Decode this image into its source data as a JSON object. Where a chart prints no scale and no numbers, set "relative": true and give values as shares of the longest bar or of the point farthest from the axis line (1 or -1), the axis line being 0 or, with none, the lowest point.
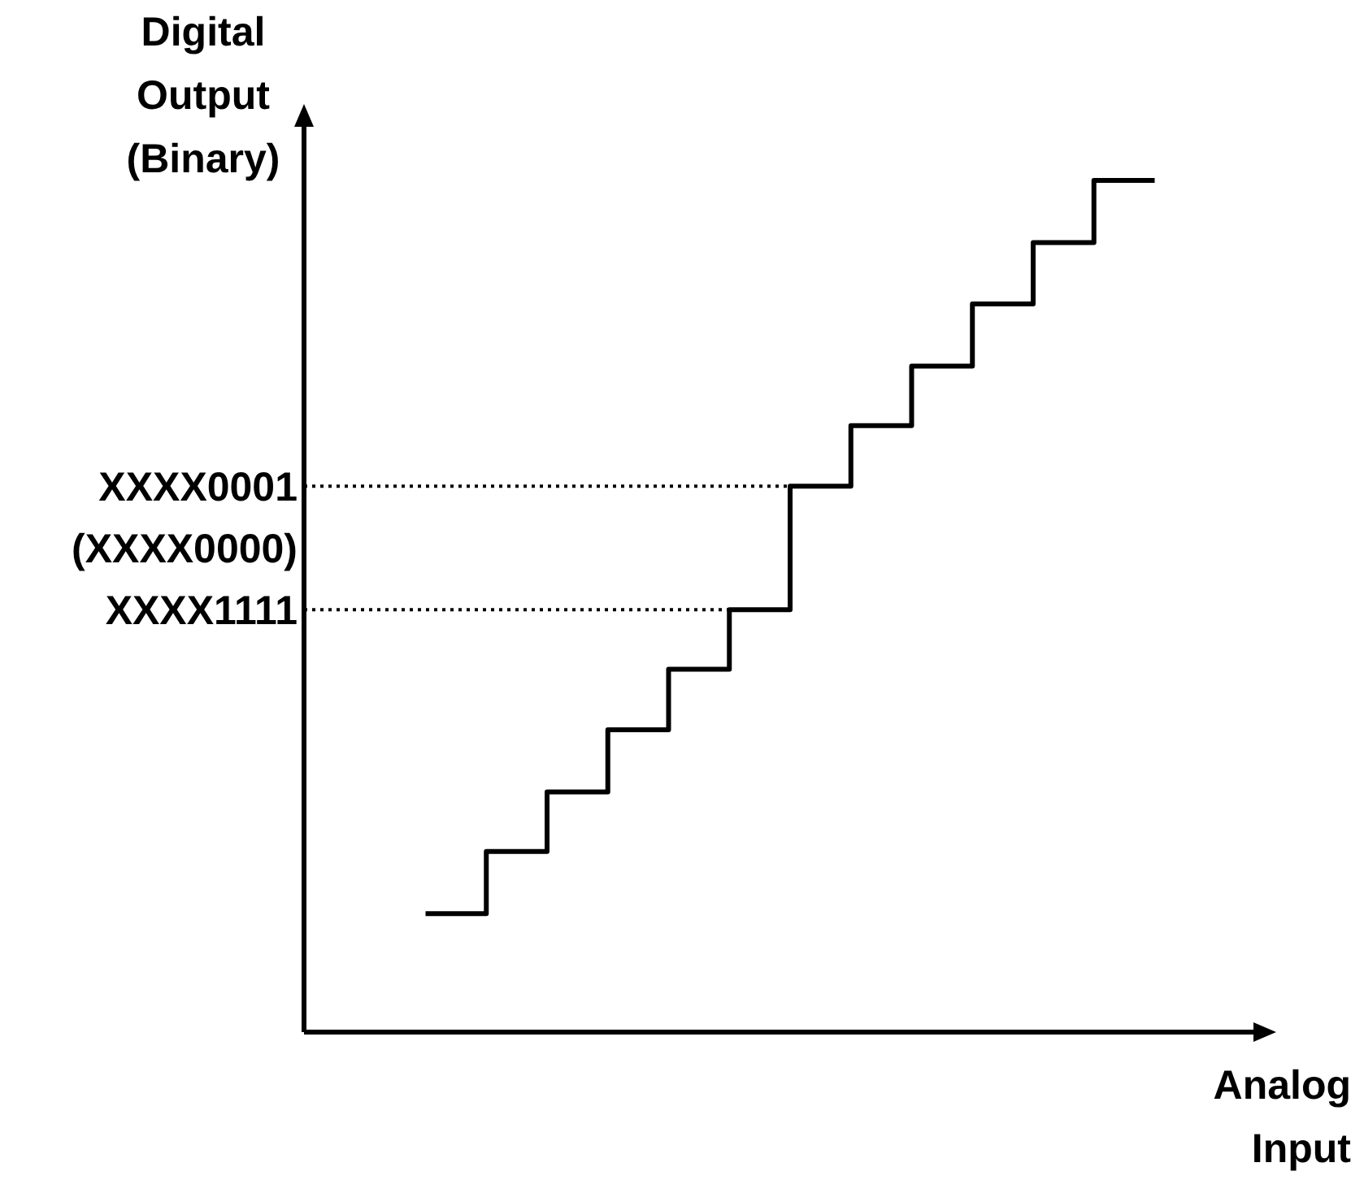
{
  "chart_data": {
    "type": "step",
    "relative": true,
    "xlabel": "Analog Input",
    "ylabel": "Digital Output (Binary)",
    "categories": [
      null,
      null,
      null,
      null,
      null,
      null,
      null,
      null,
      null,
      null,
      null,
      null,
      null
    ],
    "values": [
      0.139,
      0.212,
      0.282,
      0.355,
      0.426,
      0.496,
      0.641,
      0.712,
      0.782,
      0.855,
      0.927,
      1,
      1
    ],
    "color": "#000000",
    "marker": "none",
    "line_style": "solid",
    "ref_lines": [
      {
        "axis": "y",
        "value": 0.641,
        "label": "XXXX0001",
        "line_style": "dotted",
        "color": "#000000"
      },
      {
        "axis": "y",
        "value": 0.496,
        "label": "XXXX1111",
        "line_style": "dotted",
        "color": "#000000"
      }
    ],
    "annotations": [
      "(XXXX0000)"
    ]
  }
}
